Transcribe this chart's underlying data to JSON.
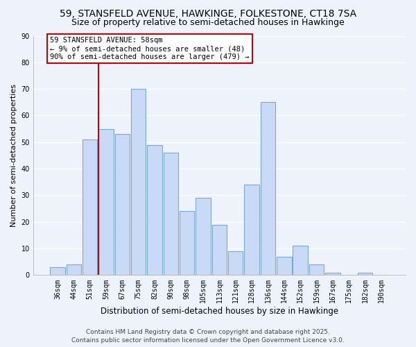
{
  "title": "59, STANSFELD AVENUE, HAWKINGE, FOLKESTONE, CT18 7SA",
  "subtitle": "Size of property relative to semi-detached houses in Hawkinge",
  "xlabel": "Distribution of semi-detached houses by size in Hawkinge",
  "ylabel": "Number of semi-detached properties",
  "categories": [
    "36sqm",
    "44sqm",
    "51sqm",
    "59sqm",
    "67sqm",
    "75sqm",
    "82sqm",
    "90sqm",
    "98sqm",
    "105sqm",
    "113sqm",
    "121sqm",
    "128sqm",
    "136sqm",
    "144sqm",
    "152sqm",
    "159sqm",
    "167sqm",
    "175sqm",
    "182sqm",
    "190sqm"
  ],
  "values": [
    3,
    4,
    51,
    55,
    53,
    70,
    49,
    46,
    24,
    29,
    19,
    9,
    34,
    65,
    7,
    11,
    4,
    1,
    0,
    1,
    0
  ],
  "bar_color": "#c8daf5",
  "bar_edge_color": "#7aaad4",
  "vline_color": "#cc0000",
  "annotation_title": "59 STANSFELD AVENUE: 58sqm",
  "annotation_line1": "← 9% of semi-detached houses are smaller (48)",
  "annotation_line2": "90% of semi-detached houses are larger (479) →",
  "annotation_box_color": "white",
  "annotation_box_edge": "#cc0000",
  "ylim": [
    0,
    90
  ],
  "yticks": [
    0,
    10,
    20,
    30,
    40,
    50,
    60,
    70,
    80,
    90
  ],
  "background_color": "#eef2fb",
  "grid_color": "white",
  "footer_line1": "Contains HM Land Registry data © Crown copyright and database right 2025.",
  "footer_line2": "Contains public sector information licensed under the Open Government Licence v3.0.",
  "title_fontsize": 10,
  "subtitle_fontsize": 9,
  "xlabel_fontsize": 8.5,
  "ylabel_fontsize": 8,
  "tick_fontsize": 7,
  "annotation_fontsize": 7.5,
  "footer_fontsize": 6.5
}
